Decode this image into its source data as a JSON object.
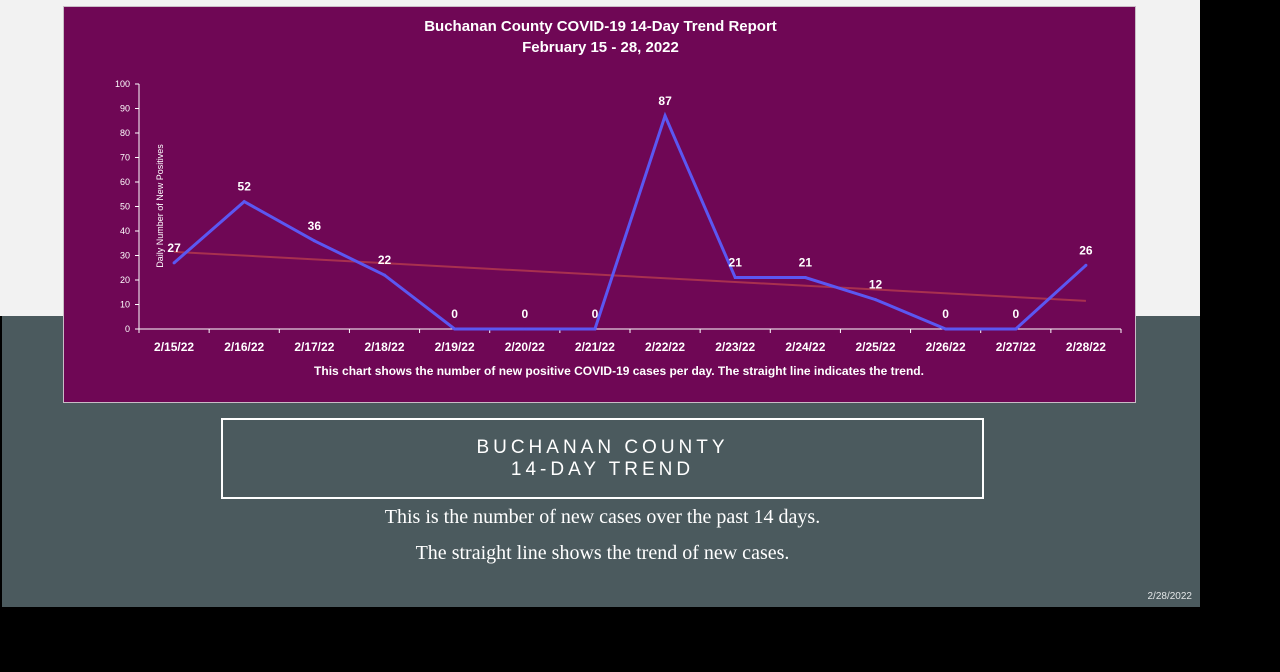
{
  "slide": {
    "headline_line1": "BUCHANAN COUNTY",
    "headline_line2": "14-DAY TREND",
    "body_line1": "This is the number of new cases over the past 14 days.",
    "body_line2": "The straight line shows the trend of new cases.",
    "date": "2/28/2022"
  },
  "colors": {
    "chart_background": "#6f0755",
    "series_line": "#5b57f2",
    "trend_line": "#a8304f",
    "slide_band": "#4b5a5e",
    "slide_top": "#f2f2f2"
  },
  "chart_data": {
    "type": "line",
    "title": "Buchanan County COVID-19 14-Day Trend Report",
    "subtitle": "February 15 - 28, 2022",
    "ylabel": "Daily Number of New Positives",
    "xlabel": "",
    "caption": "This chart shows the number of new positive COVID-19 cases per day. The straight line indicates the trend.",
    "categories": [
      "2/15/22",
      "2/16/22",
      "2/17/22",
      "2/18/22",
      "2/19/22",
      "2/20/22",
      "2/21/22",
      "2/22/22",
      "2/23/22",
      "2/24/22",
      "2/25/22",
      "2/26/22",
      "2/27/22",
      "2/28/22"
    ],
    "series": [
      {
        "values": [
          27,
          52,
          36,
          22,
          0,
          0,
          0,
          87,
          21,
          21,
          12,
          0,
          0,
          26
        ]
      }
    ],
    "trend": {
      "start": 31.5,
      "end": 11.5
    },
    "ylim": [
      0,
      100
    ],
    "yticks": [
      0,
      10,
      20,
      30,
      40,
      50,
      60,
      70,
      80,
      90,
      100
    ],
    "grid": false,
    "legend": "none",
    "data_labels": true
  }
}
